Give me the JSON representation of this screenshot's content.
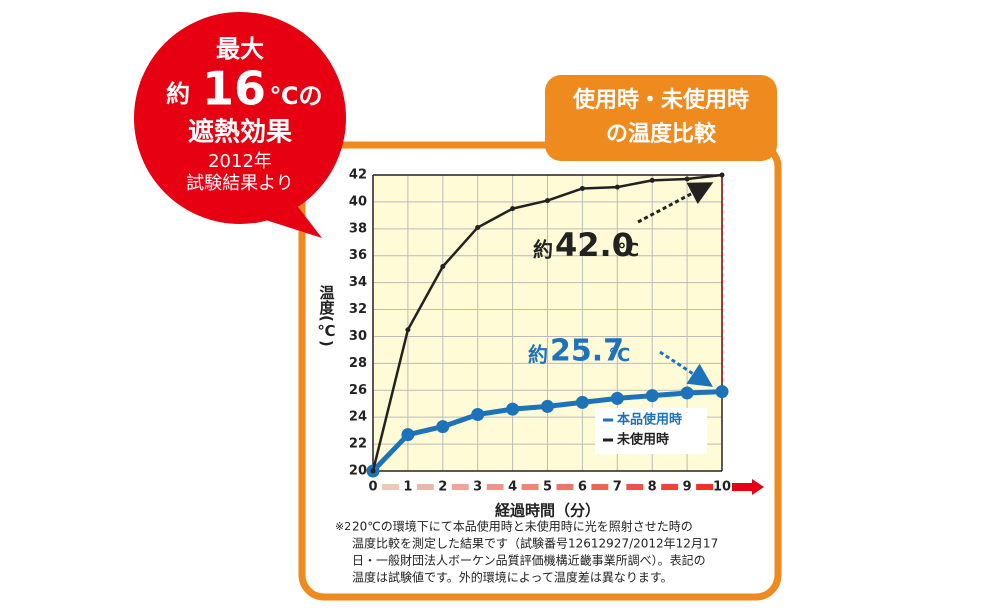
{
  "badge": {
    "line1": "最大",
    "prefix": "約",
    "number": "16",
    "unit": "℃の",
    "line3": "遮熱効果",
    "line4": "2012年",
    "line5": "試験結果より"
  },
  "panel_title": [
    "使用時・未使用時",
    "の温度比較"
  ],
  "chart_data": {
    "type": "line",
    "x_label": "経過時間（分）",
    "y_label": "温度(℃)",
    "x": [
      0,
      1,
      2,
      3,
      4,
      5,
      6,
      7,
      8,
      9,
      10
    ],
    "xlim": [
      0,
      10
    ],
    "xticks": [
      0,
      1,
      2,
      3,
      4,
      5,
      6,
      7,
      8,
      9,
      10
    ],
    "ylim": [
      20,
      42
    ],
    "yticks": [
      20,
      22,
      24,
      26,
      28,
      30,
      32,
      34,
      36,
      38,
      40,
      42
    ],
    "grid": true,
    "legend": "lower right",
    "series": [
      {
        "name": "本品使用時",
        "color": "#1d73b9",
        "values": [
          20,
          22.7,
          23.3,
          24.2,
          24.6,
          24.8,
          25.1,
          25.4,
          25.6,
          25.8,
          25.9
        ]
      },
      {
        "name": "未使用時",
        "color": "#222222",
        "values": [
          20,
          30.5,
          35.2,
          38.1,
          39.5,
          40.1,
          41.0,
          41.1,
          41.6,
          41.7,
          42.0
        ]
      }
    ],
    "annotations": [
      {
        "prefix": "約",
        "value": "42.0",
        "unit": "℃"
      },
      {
        "prefix": "約",
        "value": "25.7",
        "unit": "℃"
      }
    ]
  },
  "footnote": {
    "mark": "※2",
    "lines": [
      "20℃の環境下にて本品使用時と未使用時に光を照射させた時の",
      "温度比較を測定した結果です（試験番号12612927/2012年12月17",
      "日・一般財団法人ボーケン品質評価機構近畿事業所調べ）。表記の",
      "温度は試験値です。外的環境によって温度差は異なります。"
    ]
  }
}
